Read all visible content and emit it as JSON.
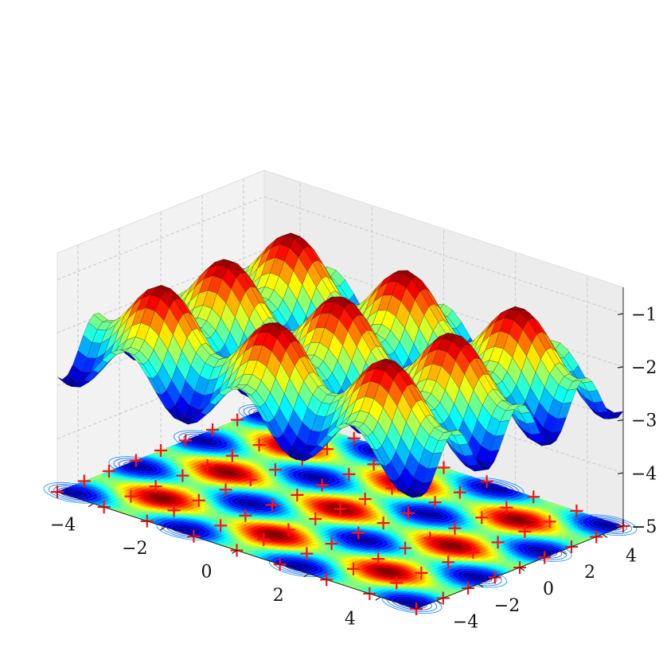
{
  "chart_data": {
    "type": "surface",
    "title": "",
    "function": "z = -2 + 0.5*(cos(2x) + cos(2y))",
    "xlim": [
      -5,
      5
    ],
    "ylim": [
      -5,
      5
    ],
    "zlim": [
      -5,
      -0.5
    ],
    "x_ticks": [
      -4,
      -2,
      0,
      2,
      4
    ],
    "y_ticks": [
      -4,
      -2,
      0,
      2,
      4
    ],
    "z_ticks": [
      -5,
      -4,
      -3,
      -2,
      -1
    ],
    "x_tick_labels": [
      "−4",
      "−2",
      "0",
      "2",
      "4"
    ],
    "y_tick_labels": [
      "−4",
      "−2",
      "0",
      "2",
      "4"
    ],
    "z_tick_labels": [
      "−5",
      "−4",
      "−3",
      "−2",
      "−1"
    ],
    "grid": true,
    "colormap": "jet",
    "contour_offset_z": -5,
    "marker_symbol": "+",
    "marker_color": "#ff0000",
    "markers": [
      [
        -5,
        -5
      ],
      [
        -5,
        -3.7
      ],
      [
        -5,
        -2.5
      ],
      [
        -5,
        -1.2
      ],
      [
        -5,
        0
      ],
      [
        -5,
        1.2
      ],
      [
        -5,
        2.5
      ],
      [
        -5,
        3.7
      ],
      [
        -5,
        5
      ],
      [
        -3.7,
        -5
      ],
      [
        -3.7,
        -3.7
      ],
      [
        -3.7,
        -2.5
      ],
      [
        -3.7,
        -1.2
      ],
      [
        -3.7,
        0
      ],
      [
        -3.7,
        1.2
      ],
      [
        -3.7,
        2.5
      ],
      [
        -3.7,
        3.7
      ],
      [
        -3.7,
        5
      ],
      [
        -2.5,
        -5
      ],
      [
        -2.5,
        -3.7
      ],
      [
        -2.5,
        -2.5
      ],
      [
        -2.5,
        -1.2
      ],
      [
        -2.5,
        0
      ],
      [
        -2.5,
        1.2
      ],
      [
        -2.5,
        2.5
      ],
      [
        -2.5,
        3.7
      ],
      [
        -2.5,
        5
      ],
      [
        -1.2,
        -5
      ],
      [
        -1.2,
        -3.7
      ],
      [
        -1.2,
        -2.5
      ],
      [
        -1.2,
        -1.2
      ],
      [
        -1.2,
        0
      ],
      [
        -1.2,
        1.2
      ],
      [
        -1.2,
        2.5
      ],
      [
        -1.2,
        3.7
      ],
      [
        -1.2,
        5
      ],
      [
        0,
        -5
      ],
      [
        0,
        -3.7
      ],
      [
        0,
        -2.5
      ],
      [
        0,
        -1.2
      ],
      [
        0,
        0
      ],
      [
        0,
        1.2
      ],
      [
        0,
        2.5
      ],
      [
        0,
        3.7
      ],
      [
        0,
        5
      ],
      [
        1.2,
        -5
      ],
      [
        1.2,
        -3.7
      ],
      [
        1.2,
        -2.5
      ],
      [
        1.2,
        -1.2
      ],
      [
        1.2,
        0
      ],
      [
        1.2,
        1.2
      ],
      [
        1.2,
        2.5
      ],
      [
        1.2,
        3.7
      ],
      [
        1.2,
        5
      ],
      [
        2.5,
        -5
      ],
      [
        2.5,
        -3.7
      ],
      [
        2.5,
        -2.5
      ],
      [
        2.5,
        -1.2
      ],
      [
        2.5,
        0
      ],
      [
        2.5,
        1.2
      ],
      [
        2.5,
        2.5
      ],
      [
        2.5,
        3.7
      ],
      [
        2.5,
        5
      ],
      [
        3.7,
        -5
      ],
      [
        3.7,
        -3.7
      ],
      [
        3.7,
        -2.5
      ],
      [
        3.7,
        -1.2
      ],
      [
        3.7,
        0
      ],
      [
        3.7,
        1.2
      ],
      [
        3.7,
        2.5
      ],
      [
        3.7,
        3.7
      ],
      [
        3.7,
        5
      ],
      [
        5,
        -5
      ],
      [
        5,
        -3.7
      ],
      [
        5,
        -2.5
      ],
      [
        5,
        -1.2
      ],
      [
        5,
        0
      ],
      [
        5,
        1.2
      ],
      [
        5,
        2.5
      ],
      [
        5,
        3.7
      ],
      [
        5,
        5
      ]
    ]
  }
}
